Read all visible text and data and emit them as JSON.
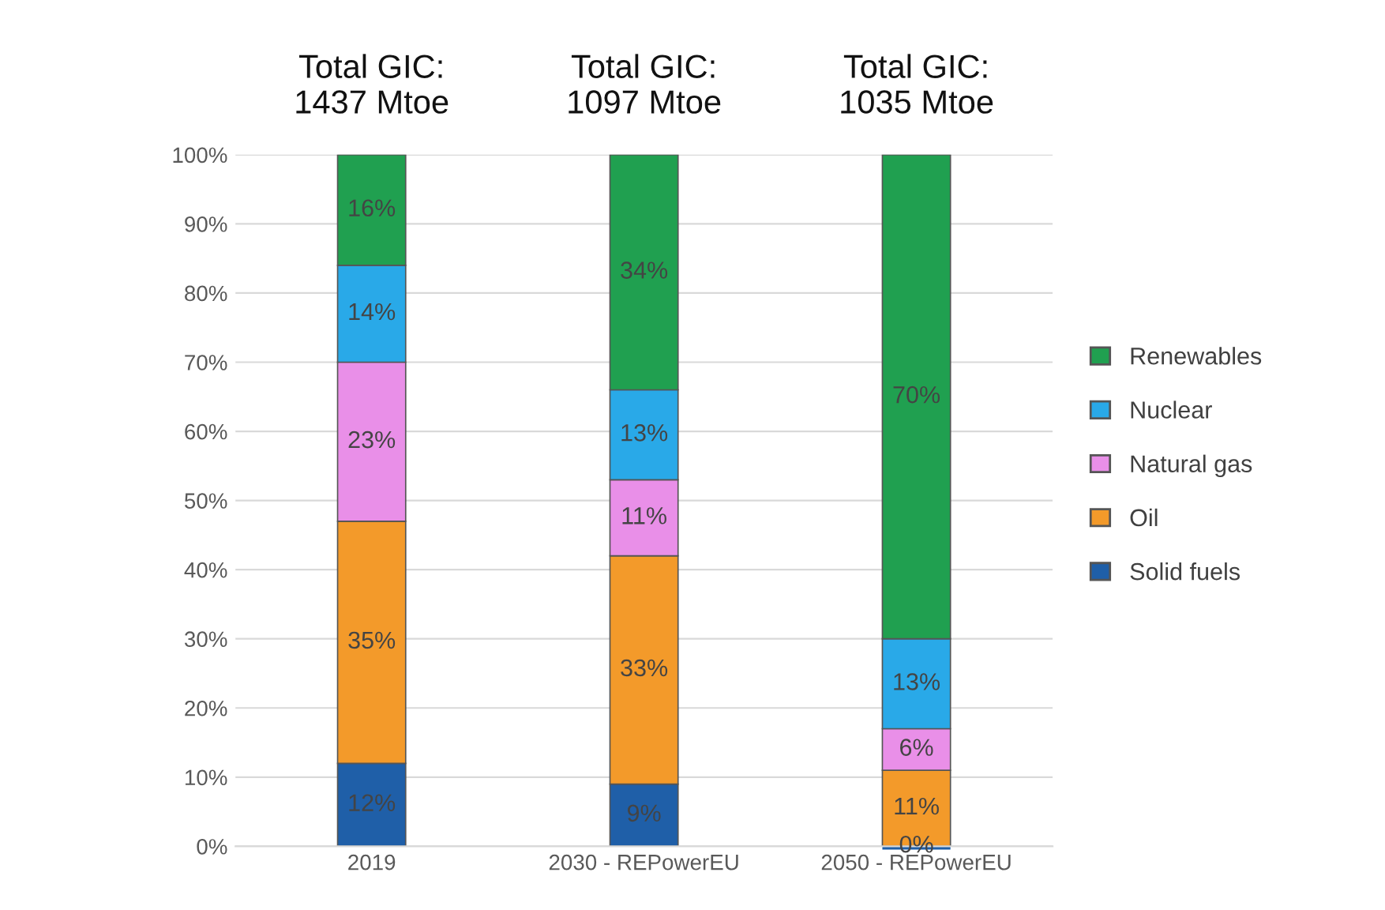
{
  "chart_data": {
    "type": "bar",
    "stacked": true,
    "categories": [
      "2019",
      "2030 - REPowerEU",
      "2050 - REPowerEU"
    ],
    "series": [
      {
        "name": "Solid fuels",
        "color": "#1f5fa8",
        "values": [
          12,
          9,
          0
        ],
        "value_labels": [
          "12%",
          "9%",
          "0%"
        ]
      },
      {
        "name": "Oil",
        "color": "#f39a2a",
        "values": [
          35,
          33,
          11
        ],
        "value_labels": [
          "35%",
          "33%",
          "11%"
        ]
      },
      {
        "name": "Natural gas",
        "color": "#e98fe8",
        "values": [
          23,
          11,
          6
        ],
        "value_labels": [
          "23%",
          "11%",
          "6%"
        ]
      },
      {
        "name": "Nuclear",
        "color": "#29a9e8",
        "values": [
          14,
          13,
          13
        ],
        "value_labels": [
          "14%",
          "13%",
          "13%"
        ]
      },
      {
        "name": "Renewables",
        "color": "#20a050",
        "values": [
          16,
          34,
          70
        ],
        "value_labels": [
          "16%",
          "34%",
          "70%"
        ]
      }
    ],
    "ylim": [
      0,
      100
    ],
    "yticks": [
      {
        "value": 0,
        "label": "0%"
      },
      {
        "value": 10,
        "label": "10%"
      },
      {
        "value": 20,
        "label": "20%"
      },
      {
        "value": 30,
        "label": "30%"
      },
      {
        "value": 40,
        "label": "40%"
      },
      {
        "value": 50,
        "label": "50%"
      },
      {
        "value": 60,
        "label": "60%"
      },
      {
        "value": 70,
        "label": "70%"
      },
      {
        "value": 80,
        "label": "80%"
      },
      {
        "value": 90,
        "label": "90%"
      },
      {
        "value": 100,
        "label": "100%"
      }
    ],
    "grid": "y",
    "legend": "right",
    "annotations": [
      "Total GIC:\n1437 Mtoe",
      "Total GIC:\n1097 Mtoe",
      "Total GIC:\n1035 Mtoe"
    ]
  }
}
